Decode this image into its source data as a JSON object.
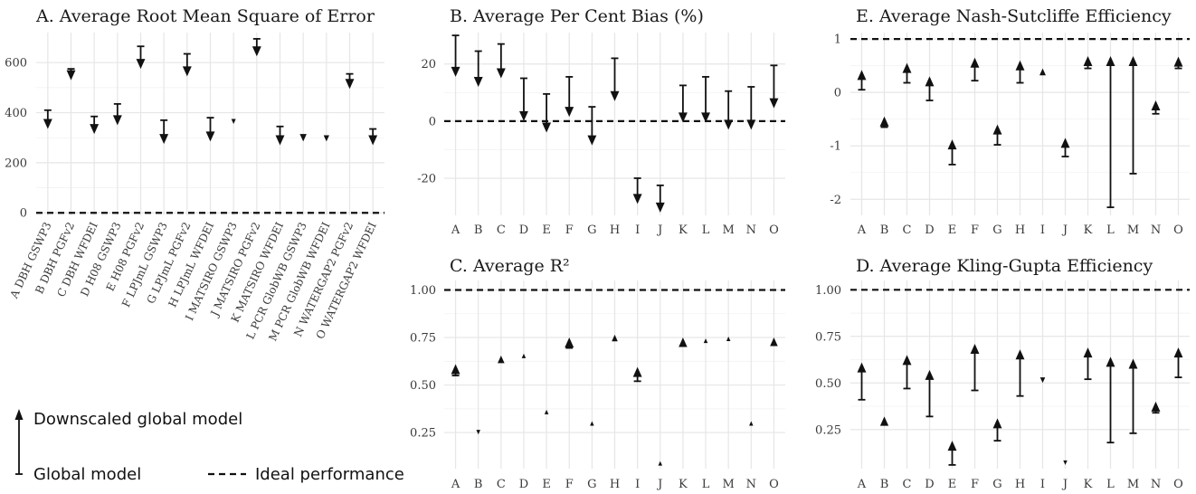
{
  "colors": {
    "mark": "#111111",
    "grid": "#e6e6e6",
    "background": "#ffffff"
  },
  "legend": {
    "downscaled_label": "Downscaled global model",
    "global_label": "Global model",
    "ideal_label": "Ideal performance"
  },
  "chart_data": [
    {
      "id": "A",
      "type": "arrow",
      "title": "A. Average Root Mean Square of Error",
      "categories": [
        "A DBH GSWP3",
        "B DBH PGFv2",
        "C DBH WFDEI",
        "D H08 GSWP3",
        "E H08 PGFv2",
        "F LPJmL GSWP3",
        "G LPJmL PGFv2",
        "H LPJmL WFDEI",
        "I MATSIRO GSWP3",
        "J MATSIRO PGFv2",
        "K MATSIRO WFDEI",
        "L PCR GlobWB GSWP3",
        "M PCR GlobWB WFDEI",
        "N WATERGAP2 PGFv2",
        "O WATERGAP2 WFDEI"
      ],
      "global": [
        410,
        575,
        385,
        435,
        665,
        370,
        635,
        380,
        375,
        695,
        345,
        315,
        310,
        555,
        335
      ],
      "downscaled": [
        335,
        530,
        315,
        350,
        575,
        275,
        545,
        285,
        355,
        625,
        270,
        285,
        285,
        495,
        270
      ],
      "ideal": 0,
      "ylim": [
        -10,
        720
      ],
      "yticks": [
        0,
        200,
        400,
        600
      ],
      "ytick_labels": [
        "0",
        "200",
        "400",
        "600"
      ],
      "grid": true
    },
    {
      "id": "B",
      "type": "arrow",
      "title": "B. Average Per Cent Bias (%)",
      "categories": [
        "A",
        "B",
        "C",
        "D",
        "E",
        "F",
        "G",
        "H",
        "I",
        "J",
        "K",
        "L",
        "M",
        "N",
        "O"
      ],
      "global": [
        30,
        24.5,
        27,
        15,
        9.5,
        15.5,
        5,
        22,
        -20,
        -22.5,
        12.5,
        15.5,
        10.5,
        12,
        19.5
      ],
      "downscaled": [
        15.5,
        12,
        15,
        0,
        -4,
        1.5,
        -8.5,
        7,
        -29,
        -32,
        -0.5,
        -0.5,
        -3,
        -3,
        4.5
      ],
      "ideal": 0,
      "ylim": [
        -33,
        31
      ],
      "yticks": [
        -20,
        0,
        20
      ],
      "ytick_labels": [
        "-20",
        "0",
        "20"
      ],
      "grid": true
    },
    {
      "id": "C",
      "type": "arrow",
      "title": "C. Average R²",
      "categories": [
        "A",
        "B",
        "C",
        "D",
        "E",
        "F",
        "G",
        "H",
        "I",
        "J",
        "K",
        "L",
        "M",
        "N",
        "O"
      ],
      "global": [
        0.55,
        0.255,
        0.615,
        0.645,
        0.355,
        0.695,
        0.295,
        0.73,
        0.52,
        0.085,
        0.7,
        0.73,
        0.74,
        0.295,
        0.705
      ],
      "downscaled": [
        0.61,
        0.24,
        0.655,
        0.665,
        0.37,
        0.75,
        0.31,
        0.765,
        0.595,
        0.1,
        0.75,
        0.745,
        0.755,
        0.31,
        0.75
      ],
      "ideal": 1.0,
      "ylim": [
        0.06,
        1.05
      ],
      "yticks": [
        0.25,
        0.5,
        0.75,
        1.0
      ],
      "ytick_labels": [
        "0.25",
        "0.50",
        "0.75",
        "1.00"
      ],
      "grid": true
    },
    {
      "id": "E",
      "type": "arrow",
      "title": "E. Average Nash-Sutcliffe Efficiency",
      "categories": [
        "A",
        "B",
        "C",
        "D",
        "E",
        "F",
        "G",
        "H",
        "I",
        "J",
        "K",
        "L",
        "M",
        "N",
        "O"
      ],
      "global": [
        0.05,
        -0.65,
        0.18,
        -0.15,
        -1.35,
        0.22,
        -0.98,
        0.18,
        0.32,
        -1.2,
        0.45,
        -2.15,
        -1.52,
        -0.4,
        0.45
      ],
      "downscaled": [
        0.42,
        -0.45,
        0.55,
        0.3,
        -0.88,
        0.65,
        -0.6,
        0.6,
        0.45,
        -0.85,
        0.68,
        0.68,
        0.68,
        -0.15,
        0.67
      ],
      "ideal": 1,
      "ylim": [
        -2.3,
        1.12
      ],
      "yticks": [
        -2,
        -1,
        0,
        1
      ],
      "ytick_labels": [
        "-2",
        "-1",
        "0",
        "1"
      ],
      "grid": true
    },
    {
      "id": "D",
      "type": "arrow",
      "title": "D. Average Kling-Gupta Efficiency",
      "categories": [
        "A",
        "B",
        "C",
        "D",
        "E",
        "F",
        "G",
        "H",
        "I",
        "J",
        "K",
        "L",
        "M",
        "N",
        "O"
      ],
      "global": [
        0.41,
        0.27,
        0.47,
        0.32,
        0.06,
        0.46,
        0.19,
        0.43,
        0.53,
        0.08,
        0.52,
        0.18,
        0.23,
        0.34,
        0.53
      ],
      "downscaled": [
        0.61,
        0.32,
        0.65,
        0.57,
        0.19,
        0.71,
        0.31,
        0.68,
        0.5,
        0.06,
        0.69,
        0.64,
        0.63,
        0.4,
        0.69
      ],
      "ideal": 1.0,
      "ylim": [
        0.04,
        1.05
      ],
      "yticks": [
        0.25,
        0.5,
        0.75,
        1.0
      ],
      "ytick_labels": [
        "0.25",
        "0.50",
        "0.75",
        "1.00"
      ],
      "grid": true
    }
  ]
}
